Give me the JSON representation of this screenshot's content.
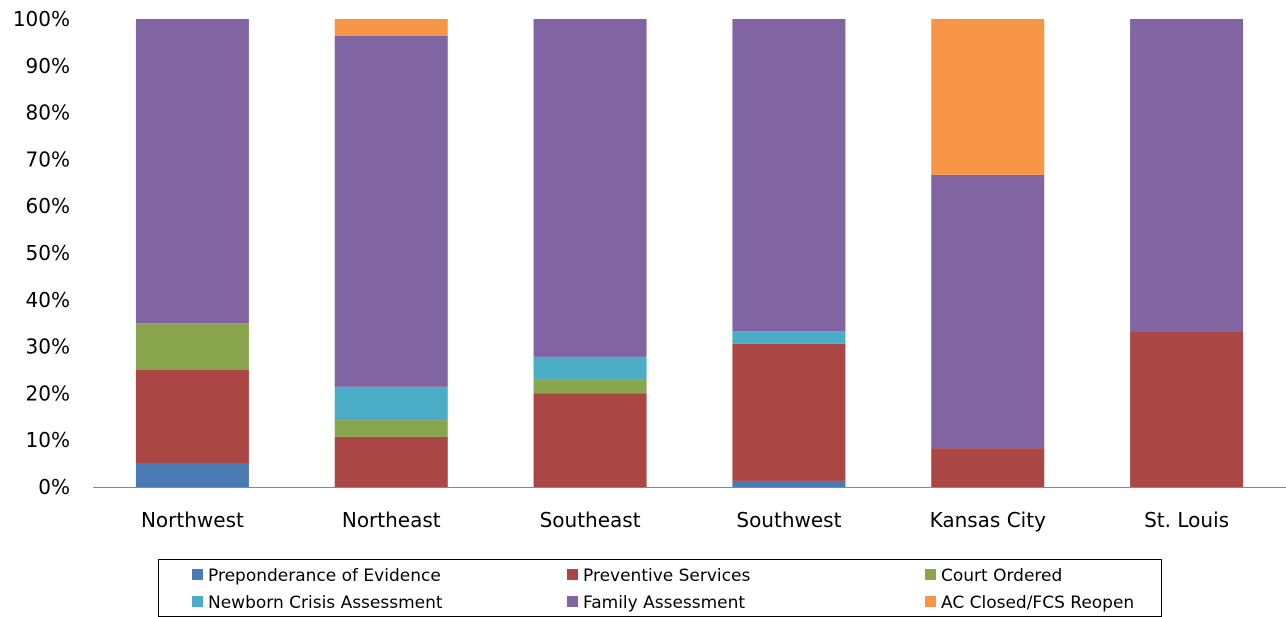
{
  "chart_data": {
    "type": "bar",
    "stacked": true,
    "categories": [
      "Northwest",
      "Northeast",
      "Southeast",
      "Southwest",
      "Kansas City",
      "St. Louis"
    ],
    "series": [
      {
        "name": "Preponderance of Evidence",
        "color": "#4a7ab3",
        "values": [
          5.0,
          0.0,
          0.0,
          1.3,
          0.0,
          0.0
        ]
      },
      {
        "name": "Preventive Services",
        "color": "#aa4744",
        "values": [
          20.0,
          10.7,
          20.0,
          29.3,
          8.3,
          33.3
        ]
      },
      {
        "name": "Court Ordered",
        "color": "#89a64e",
        "values": [
          10.0,
          3.6,
          3.0,
          0.0,
          0.0,
          0.0
        ]
      },
      {
        "name": "Newborn Crisis Assessment",
        "color": "#4bacc6",
        "values": [
          0.0,
          7.1,
          4.8,
          2.7,
          0.0,
          0.0
        ]
      },
      {
        "name": "Family Assessment",
        "color": "#8065a2",
        "values": [
          65.0,
          75.0,
          72.2,
          66.7,
          58.4,
          66.7
        ]
      },
      {
        "name": "AC Closed/FCS Reopen",
        "color": "#f79646",
        "values": [
          0.0,
          3.6,
          0.0,
          0.0,
          33.3,
          0.0
        ]
      }
    ],
    "y_ticks": [
      "0%",
      "10%",
      "20%",
      "30%",
      "40%",
      "50%",
      "60%",
      "70%",
      "80%",
      "90%",
      "100%"
    ],
    "ylim": [
      0,
      100
    ],
    "grid": false,
    "legend_position": "bottom"
  }
}
